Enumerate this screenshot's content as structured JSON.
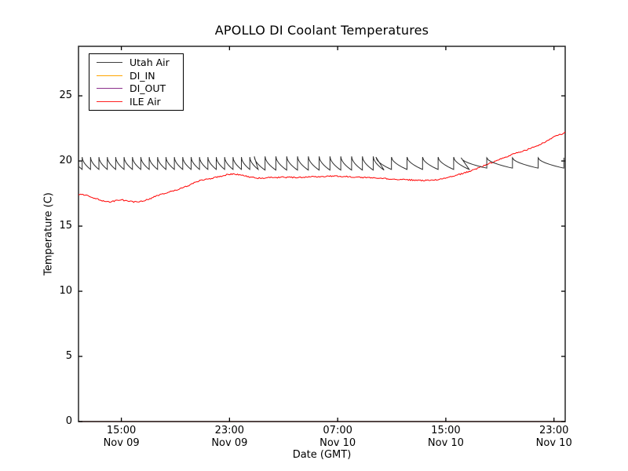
{
  "title": "APOLLO DI Coolant Temperatures",
  "axes": {
    "xlabel": "Date (GMT)",
    "ylabel": "Temperature (C)",
    "ylim": [
      0,
      28.8
    ],
    "x_range_hours": [
      0,
      36
    ],
    "y_ticks": [
      0,
      5,
      10,
      15,
      20,
      25
    ],
    "x_ticks": [
      {
        "hours": 3.17,
        "time": "15:00",
        "date": "Nov 09"
      },
      {
        "hours": 11.17,
        "time": "23:00",
        "date": "Nov 09"
      },
      {
        "hours": 19.17,
        "time": "07:00",
        "date": "Nov 10"
      },
      {
        "hours": 27.17,
        "time": "15:00",
        "date": "Nov 10"
      },
      {
        "hours": 35.17,
        "time": "23:00",
        "date": "Nov 10"
      }
    ]
  },
  "legend": {
    "items": [
      {
        "label": "Utah Air",
        "color": "#3f3f3f"
      },
      {
        "label": "DI_IN",
        "color": "#ffa500"
      },
      {
        "label": "DI_OUT",
        "color": "#8b2f8b"
      },
      {
        "label": "ILE Air",
        "color": "#ff2222"
      }
    ]
  },
  "chart_data": {
    "type": "line",
    "title": "APOLLO DI Coolant Temperatures",
    "xlabel": "Date (GMT)",
    "ylabel": "Temperature (C)",
    "x_unit": "hours after plot left edge (~Nov 09 12:00 GMT)",
    "y_unit": "C",
    "ylim": [
      0,
      28.8
    ],
    "legend_position": "upper left",
    "grid": false,
    "series": [
      {
        "name": "Utah Air",
        "color": "#2e2e2e",
        "style": "sawtooth",
        "approx_range_c": [
          19.3,
          20.35
        ],
        "end_value_c": 19.7,
        "sawtooth_segments": [
          {
            "t_start": -0.35,
            "t_end": 13,
            "period": 0.62,
            "peak": 20.3,
            "valley": 19.35
          },
          {
            "t_start": 13,
            "t_end": 22,
            "period": 0.8,
            "peak": 20.35,
            "valley": 19.3
          },
          {
            "t_start": 22,
            "t_end": 28.3,
            "period": 1.15,
            "peak": 20.3,
            "valley": 19.35
          },
          {
            "t_start": 28.3,
            "t_end": 36,
            "period": 1.9,
            "peak": 20.25,
            "valley": 19.45
          }
        ]
      },
      {
        "name": "DI_IN",
        "color": "#ffa500",
        "style": "flat",
        "points": [
          [
            0,
            0
          ],
          [
            36,
            0
          ]
        ]
      },
      {
        "name": "DI_OUT",
        "color": "#8b2f8b",
        "style": "flat",
        "points": [
          [
            0,
            0
          ],
          [
            36,
            0
          ]
        ]
      },
      {
        "name": "ILE Air",
        "color": "#ff0000",
        "style": "noisy-line",
        "points": [
          [
            0,
            17.45
          ],
          [
            0.6,
            17.35
          ],
          [
            1.2,
            17.15
          ],
          [
            1.8,
            16.95
          ],
          [
            2.2,
            16.85
          ],
          [
            2.6,
            16.92
          ],
          [
            3.0,
            17.02
          ],
          [
            3.4,
            16.98
          ],
          [
            3.8,
            16.9
          ],
          [
            4.2,
            16.85
          ],
          [
            4.6,
            16.9
          ],
          [
            5.0,
            17.0
          ],
          [
            5.5,
            17.2
          ],
          [
            6.0,
            17.4
          ],
          [
            6.5,
            17.55
          ],
          [
            7.0,
            17.7
          ],
          [
            7.5,
            17.85
          ],
          [
            8.0,
            18.05
          ],
          [
            8.5,
            18.3
          ],
          [
            9.0,
            18.5
          ],
          [
            9.5,
            18.6
          ],
          [
            10.0,
            18.7
          ],
          [
            10.5,
            18.82
          ],
          [
            11.0,
            18.95
          ],
          [
            11.5,
            19.0
          ],
          [
            12.0,
            18.92
          ],
          [
            12.6,
            18.78
          ],
          [
            13.2,
            18.68
          ],
          [
            14.0,
            18.72
          ],
          [
            15,
            18.75
          ],
          [
            16,
            18.74
          ],
          [
            17,
            18.77
          ],
          [
            18,
            18.8
          ],
          [
            19,
            18.84
          ],
          [
            20,
            18.8
          ],
          [
            21,
            18.74
          ],
          [
            22,
            18.68
          ],
          [
            23,
            18.62
          ],
          [
            24,
            18.58
          ],
          [
            25,
            18.52
          ],
          [
            25.6,
            18.5
          ],
          [
            26.2,
            18.54
          ],
          [
            26.8,
            18.62
          ],
          [
            27.4,
            18.75
          ],
          [
            28,
            18.92
          ],
          [
            28.6,
            19.1
          ],
          [
            29.2,
            19.32
          ],
          [
            29.8,
            19.55
          ],
          [
            30.4,
            19.8
          ],
          [
            31,
            20.05
          ],
          [
            31.6,
            20.3
          ],
          [
            32.2,
            20.55
          ],
          [
            32.8,
            20.75
          ],
          [
            33.4,
            20.95
          ],
          [
            34,
            21.2
          ],
          [
            34.6,
            21.5
          ],
          [
            35.2,
            21.85
          ],
          [
            35.7,
            22.05
          ],
          [
            36,
            22.2
          ]
        ]
      }
    ]
  }
}
